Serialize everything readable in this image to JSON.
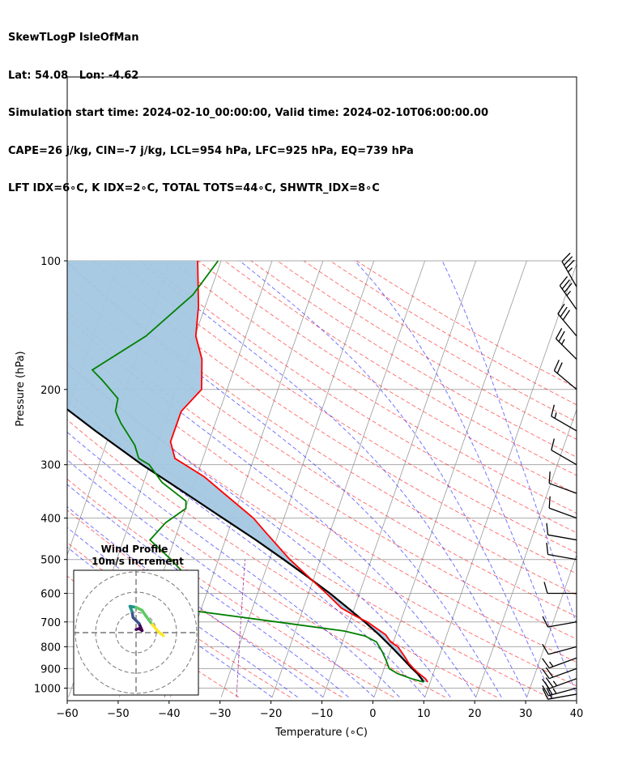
{
  "header": {
    "line1": "SkewTLogP IsleOfMan",
    "line2": "Lat: 54.08   Lon: -4.62",
    "line3": "Simulation start time: 2024-02-10_00:00:00, Valid time: 2024-02-10T06:00:00.00",
    "line4": "CAPE=26 j/kg, CIN=-7 j/kg, LCL=954 hPa, LFC=925 hPa, EQ=739 hPa",
    "line5": "LFT IDX=6∘C, K IDX=2∘C, TOTAL TOTS=44∘C, SHWTR_IDX=8∘C"
  },
  "colors": {
    "temperature": "#ff0000",
    "dewpoint": "#008000",
    "parcel": "#000000",
    "cape_fill": "#a3c7e0",
    "dry_adiabat": "#ff0000",
    "moist_adiabat": "#0000ff",
    "mixing_ratio": "#800080",
    "isotherm": "#999999",
    "isobar": "#aaaaaa"
  },
  "chart_data": {
    "type": "skew-t",
    "xlabel": "Temperature (∘C)",
    "ylabel": "Pressure (hPa)",
    "xlim": [
      -60,
      40
    ],
    "ylim": [
      1050,
      100
    ],
    "x_ticks": [
      "−60",
      "−50",
      "−40",
      "−30",
      "−20",
      "−10",
      "0",
      "10",
      "20",
      "30",
      "40"
    ],
    "y_ticks": [
      1000,
      900,
      800,
      700,
      600,
      500,
      400,
      300,
      200,
      100
    ],
    "temperature_profile": [
      {
        "p": 968,
        "t": 9.5
      },
      {
        "p": 950,
        "t": 8.8
      },
      {
        "p": 925,
        "t": 7.2
      },
      {
        "p": 900,
        "t": 5.8
      },
      {
        "p": 875,
        "t": 4.5
      },
      {
        "p": 850,
        "t": 3.5
      },
      {
        "p": 800,
        "t": 1.2
      },
      {
        "p": 780,
        "t": -0.5
      },
      {
        "p": 750,
        "t": -2.0
      },
      {
        "p": 700,
        "t": -6.5
      },
      {
        "p": 680,
        "t": -9.0
      },
      {
        "p": 650,
        "t": -12.5
      },
      {
        "p": 600,
        "t": -16.5
      },
      {
        "p": 500,
        "t": -26.0
      },
      {
        "p": 430,
        "t": -32.8
      },
      {
        "p": 400,
        "t": -36.0
      },
      {
        "p": 350,
        "t": -43.5
      },
      {
        "p": 320,
        "t": -48.5
      },
      {
        "p": 290,
        "t": -55.5
      },
      {
        "p": 265,
        "t": -57.5
      },
      {
        "p": 240,
        "t": -57.5
      },
      {
        "p": 225,
        "t": -57.5
      },
      {
        "p": 200,
        "t": -55.0
      },
      {
        "p": 170,
        "t": -57.0
      },
      {
        "p": 150,
        "t": -59.8
      },
      {
        "p": 128,
        "t": -61.3
      },
      {
        "p": 100,
        "t": -64.6
      }
    ],
    "dewpoint_profile": [
      {
        "p": 968,
        "t": 8.7
      },
      {
        "p": 950,
        "t": 6.0
      },
      {
        "p": 925,
        "t": 3.0
      },
      {
        "p": 900,
        "t": 1.0
      },
      {
        "p": 860,
        "t": -0.2
      },
      {
        "p": 820,
        "t": -1.6
      },
      {
        "p": 780,
        "t": -3.3
      },
      {
        "p": 755,
        "t": -6.0
      },
      {
        "p": 735,
        "t": -10.4
      },
      {
        "p": 700,
        "t": -24.2
      },
      {
        "p": 650,
        "t": -45.4
      },
      {
        "p": 600,
        "t": -53.8
      },
      {
        "p": 580,
        "t": -49.7
      },
      {
        "p": 550,
        "t": -44.9
      },
      {
        "p": 500,
        "t": -49.3
      },
      {
        "p": 450,
        "t": -54.8
      },
      {
        "p": 410,
        "t": -52.9
      },
      {
        "p": 380,
        "t": -49.9
      },
      {
        "p": 365,
        "t": -50.4
      },
      {
        "p": 330,
        "t": -56.4
      },
      {
        "p": 300,
        "t": -60.1
      },
      {
        "p": 290,
        "t": -62.6
      },
      {
        "p": 270,
        "t": -64.3
      },
      {
        "p": 240,
        "t": -68.5
      },
      {
        "p": 225,
        "t": -70.4
      },
      {
        "p": 210,
        "t": -70.8
      },
      {
        "p": 190,
        "t": -75.2
      },
      {
        "p": 180,
        "t": -77.8
      },
      {
        "p": 150,
        "t": -69.6
      },
      {
        "p": 120,
        "t": -63.2
      },
      {
        "p": 100,
        "t": -60.6
      }
    ],
    "parcel_profile": [
      {
        "p": 968,
        "t": 8.7
      },
      {
        "p": 950,
        "t": 8.0
      },
      {
        "p": 925,
        "t": 6.9
      },
      {
        "p": 900,
        "t": 5.5
      },
      {
        "p": 850,
        "t": 2.8
      },
      {
        "p": 800,
        "t": -0.1
      },
      {
        "p": 750,
        "t": -3.3
      },
      {
        "p": 700,
        "t": -7.0
      },
      {
        "p": 650,
        "t": -11.2
      },
      {
        "p": 600,
        "t": -15.8
      },
      {
        "p": 550,
        "t": -21.2
      },
      {
        "p": 500,
        "t": -27.2
      },
      {
        "p": 450,
        "t": -34.0
      },
      {
        "p": 400,
        "t": -42.0
      },
      {
        "p": 350,
        "t": -51.0
      },
      {
        "p": 300,
        "t": -61.5
      },
      {
        "p": 250,
        "t": -73.0
      },
      {
        "p": 200,
        "t": -86.5
      },
      {
        "p": 150,
        "t": -102.0
      },
      {
        "p": 100,
        "t": -122.0
      }
    ],
    "wind_barbs": [
      {
        "p": 1033,
        "dir": 260,
        "kt": 20
      },
      {
        "p": 1000,
        "dir": 255,
        "kt": 25
      },
      {
        "p": 950,
        "dir": 250,
        "kt": 25
      },
      {
        "p": 900,
        "dir": 250,
        "kt": 20
      },
      {
        "p": 850,
        "dir": 250,
        "kt": 15
      },
      {
        "p": 800,
        "dir": 255,
        "kt": 10
      },
      {
        "p": 700,
        "dir": 260,
        "kt": 10
      },
      {
        "p": 600,
        "dir": 270,
        "kt": 10
      },
      {
        "p": 500,
        "dir": 280,
        "kt": 10
      },
      {
        "p": 450,
        "dir": 280,
        "kt": 10
      },
      {
        "p": 400,
        "dir": 290,
        "kt": 10
      },
      {
        "p": 350,
        "dir": 290,
        "kt": 10
      },
      {
        "p": 300,
        "dir": 300,
        "kt": 10
      },
      {
        "p": 250,
        "dir": 300,
        "kt": 15
      },
      {
        "p": 200,
        "dir": 310,
        "kt": 20
      },
      {
        "p": 170,
        "dir": 315,
        "kt": 25
      },
      {
        "p": 150,
        "dir": 320,
        "kt": 30
      },
      {
        "p": 130,
        "dir": 325,
        "kt": 35
      },
      {
        "p": 115,
        "dir": 330,
        "kt": 35
      }
    ],
    "hodograph": {
      "title": "Wind Profile",
      "subtitle": "10m/s increment",
      "rings_ms": [
        10,
        20,
        30
      ],
      "points": [
        {
          "u": 0.0,
          "v": 1.5
        },
        {
          "u": 1.5,
          "v": 2.0
        },
        {
          "u": 3.0,
          "v": 1.0
        },
        {
          "u": 1.5,
          "v": 4.5
        },
        {
          "u": 0.0,
          "v": 6.0
        },
        {
          "u": -1.5,
          "v": 7.5
        },
        {
          "u": -2.0,
          "v": 10.5
        },
        {
          "u": -3.0,
          "v": 13.0
        },
        {
          "u": 0.0,
          "v": 12.5
        },
        {
          "u": 3.0,
          "v": 11.0
        },
        {
          "u": 5.0,
          "v": 8.0
        },
        {
          "u": 8.0,
          "v": 4.0
        },
        {
          "u": 11.0,
          "v": 0.5
        },
        {
          "u": 13.5,
          "v": -1.5
        }
      ]
    }
  }
}
